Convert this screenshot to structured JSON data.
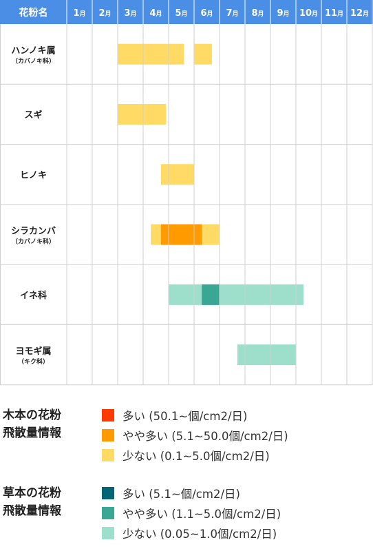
{
  "chart_data": {
    "type": "gantt",
    "header_label": "花粉名",
    "months": [
      "1",
      "2",
      "3",
      "4",
      "5",
      "6",
      "7",
      "8",
      "9",
      "10",
      "11",
      "12"
    ],
    "month_unit": "月",
    "rows": [
      {
        "name": "ハンノキ属",
        "sub": "（カバノキ科）",
        "bars": [
          {
            "start": 3.0,
            "end": 5.6,
            "level": "tree_low"
          },
          {
            "start": 6.0,
            "end": 6.7,
            "level": "tree_low"
          }
        ]
      },
      {
        "name": "スギ",
        "sub": "",
        "bars": [
          {
            "start": 3.0,
            "end": 4.9,
            "level": "tree_low"
          }
        ]
      },
      {
        "name": "ヒノキ",
        "sub": "",
        "bars": [
          {
            "start": 4.7,
            "end": 6.0,
            "level": "tree_low"
          }
        ]
      },
      {
        "name": "シラカンバ",
        "sub": "（カバノキ科）",
        "bars": [
          {
            "start": 4.3,
            "end": 7.0,
            "level": "tree_low"
          },
          {
            "start": 4.7,
            "end": 6.3,
            "level": "tree_mid"
          }
        ]
      },
      {
        "name": "イネ科",
        "sub": "",
        "bars": [
          {
            "start": 5.0,
            "end": 10.3,
            "level": "grass_low"
          },
          {
            "start": 6.3,
            "end": 7.0,
            "level": "grass_mid"
          }
        ]
      },
      {
        "name": "ヨモギ属",
        "sub": "（キク科）",
        "bars": [
          {
            "start": 7.7,
            "end": 10.0,
            "level": "grass_low"
          }
        ]
      }
    ],
    "legend": [
      {
        "title": "木本の花粉\n飛散量情報",
        "items": [
          {
            "level": "tree_high",
            "color": "#ff3a00",
            "label": "多い (50.1~個/cm2/日)"
          },
          {
            "level": "tree_mid",
            "color": "#ff9a00",
            "label": "やや多い (5.1~50.0個/cm2/日)"
          },
          {
            "level": "tree_low",
            "color": "#ffdb66",
            "label": "少ない (0.1~5.0個/cm2/日)"
          }
        ]
      },
      {
        "title": "草本の花粉\n飛散量情報",
        "items": [
          {
            "level": "grass_high",
            "color": "#046672",
            "label": "多い (5.1~個/cm2/日)"
          },
          {
            "level": "grass_mid",
            "color": "#3aa795",
            "label": "やや多い (1.1~5.0個/cm2/日)"
          },
          {
            "level": "grass_low",
            "color": "#9edfcb",
            "label": "少ない (0.05~1.0個/cm2/日)"
          }
        ]
      }
    ],
    "colors": {
      "header_bg": "#4a8ee6",
      "grid": "#cfcfcf",
      "header_text": "#ffffff"
    }
  }
}
